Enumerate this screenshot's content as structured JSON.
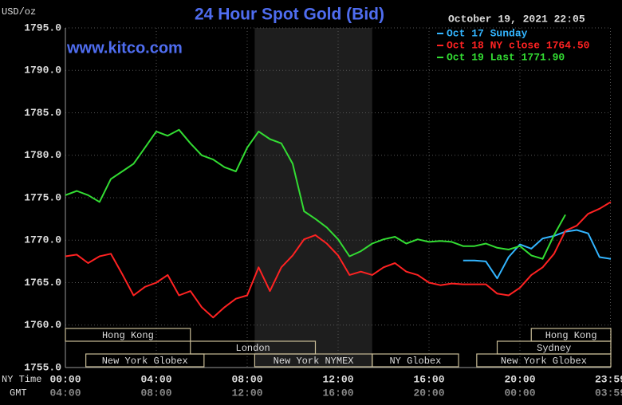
{
  "chart_data": {
    "type": "line",
    "title": "24 Hour Spot Gold (Bid)",
    "subtitle": "www.kitco.com",
    "timestamp": "October 19, 2021 22:05",
    "y_label": "USD/oz",
    "x_label": "NY Time",
    "x2_label": "GMT",
    "x": [
      0,
      0.5,
      1,
      1.5,
      2,
      2.5,
      3,
      3.5,
      4,
      4.5,
      5,
      5.5,
      6,
      6.5,
      7,
      7.5,
      8,
      8.5,
      9,
      9.5,
      10,
      10.5,
      11,
      11.5,
      12,
      12.5,
      13,
      13.5,
      14,
      14.5,
      15,
      15.5,
      16,
      16.5,
      17,
      17.5,
      18,
      18.5,
      19,
      19.5,
      20,
      20.5,
      21,
      21.5,
      22,
      22.5,
      23,
      23.5,
      24
    ],
    "series": [
      {
        "name": "Oct 17 Sunday",
        "color": "#33b5ff",
        "values": [
          null,
          null,
          null,
          null,
          null,
          null,
          null,
          null,
          null,
          null,
          null,
          null,
          null,
          null,
          null,
          null,
          null,
          null,
          null,
          null,
          null,
          null,
          null,
          null,
          null,
          null,
          null,
          null,
          null,
          null,
          null,
          null,
          null,
          null,
          null,
          1767.6,
          1767.6,
          1767.5,
          1765.5,
          1768,
          1769.5,
          1769,
          1770.2,
          1770.5,
          1771,
          1771.2,
          1770.8,
          1768,
          1767.8
        ]
      },
      {
        "name": "Oct 18 NY close 1764.50",
        "color": "#ff2222",
        "values": [
          1768.1,
          1768.3,
          1767.3,
          1768.1,
          1768.4,
          1766,
          1763.5,
          1764.5,
          1765,
          1765.9,
          1763.5,
          1764,
          1762.1,
          1760.9,
          1762.1,
          1763.1,
          1763.5,
          1766.8,
          1764,
          1766.8,
          1768.2,
          1770.1,
          1770.6,
          1769.6,
          1768.2,
          1765.9,
          1766.3,
          1765.9,
          1766.8,
          1767.3,
          1766.3,
          1765.9,
          1765,
          1764.7,
          1764.9,
          1764.8,
          1764.8,
          1764.8,
          1763.7,
          1763.5,
          1764.4,
          1765.9,
          1766.8,
          1768.4,
          1771.1,
          1771.7,
          1773.1,
          1773.7,
          1774.5
        ]
      },
      {
        "name": "Oct 19 Last 1771.90",
        "color": "#33dd33",
        "values": [
          1775.3,
          1775.8,
          1775.3,
          1774.5,
          1777.2,
          1778.1,
          1779,
          1780.9,
          1782.8,
          1782.3,
          1783,
          1781.4,
          1780,
          1779.5,
          1778.6,
          1778.1,
          1780.9,
          1782.8,
          1781.9,
          1781.4,
          1779,
          1773.4,
          1772.5,
          1771.5,
          1770.1,
          1768.1,
          1768.7,
          1769.6,
          1770.1,
          1770.4,
          1769.6,
          1770.1,
          1769.8,
          1769.9,
          1769.8,
          1769.3,
          1769.3,
          1769.6,
          1769.1,
          1768.9,
          1769.3,
          1768.2,
          1767.8,
          1770.6,
          1773,
          null,
          null,
          null,
          null
        ]
      }
    ],
    "xlim": [
      0,
      24
    ],
    "ylim": [
      1755,
      1795
    ],
    "yticks": [
      {
        "value": 1755,
        "label": "1755.0"
      },
      {
        "value": 1760,
        "label": "1760.0"
      },
      {
        "value": 1765,
        "label": "1765.0"
      },
      {
        "value": 1770,
        "label": "1770.0"
      },
      {
        "value": 1775,
        "label": "1775.0"
      },
      {
        "value": 1780,
        "label": "1780.0"
      },
      {
        "value": 1785,
        "label": "1785.0"
      },
      {
        "value": 1790,
        "label": "1790.0"
      },
      {
        "value": 1795,
        "label": "1795.0"
      }
    ],
    "xticks": [
      {
        "value": 0,
        "label": "00:00"
      },
      {
        "value": 4,
        "label": "04:00"
      },
      {
        "value": 8,
        "label": "08:00"
      },
      {
        "value": 12,
        "label": "12:00"
      },
      {
        "value": 16,
        "label": "16:00"
      },
      {
        "value": 20,
        "label": "20:00"
      },
      {
        "value": 23.983,
        "label": "23:59"
      }
    ],
    "x2ticks": [
      {
        "value": 0,
        "label": "04:00"
      },
      {
        "value": 4,
        "label": "08:00"
      },
      {
        "value": 8,
        "label": "12:00"
      },
      {
        "value": 12,
        "label": "16:00"
      },
      {
        "value": 16,
        "label": "20:00"
      },
      {
        "value": 20,
        "label": "00:00"
      },
      {
        "value": 23.983,
        "label": "03:59"
      }
    ],
    "highlight_x": [
      8.33,
      13.5
    ],
    "sessions": [
      {
        "label": "Hong Kong",
        "start": 0,
        "end": 5.5
      },
      {
        "label": "London",
        "start": 5.5,
        "end": 11
      },
      {
        "label": "New York Globex",
        "start": 0.9,
        "end": 6.1
      },
      {
        "label": "New York NYMEX",
        "start": 8.33,
        "end": 13.5
      },
      {
        "label": "NY Globex",
        "start": 13.5,
        "end": 17.3
      },
      {
        "label": "Hong Kong",
        "start": 20.5,
        "end": 24
      },
      {
        "label": "Sydney",
        "start": 19,
        "end": 24
      },
      {
        "label": "New York Globex",
        "start": 18.1,
        "end": 24
      }
    ],
    "grid": true,
    "legend": "top-right"
  }
}
